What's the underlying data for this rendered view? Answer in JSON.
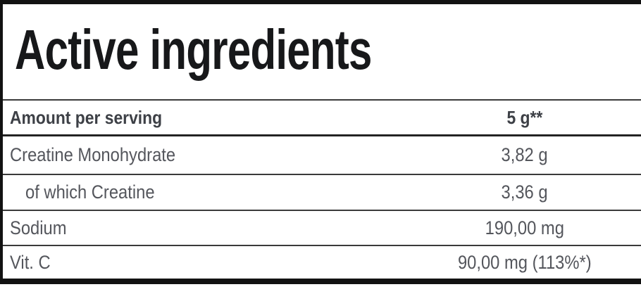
{
  "title": "Active ingredients",
  "table": {
    "header": {
      "label": "Amount per serving",
      "value": "5 g**"
    },
    "rows": [
      {
        "label": "Creatine Monohydrate",
        "value": "3,82 g"
      },
      {
        "label": "of which Creatine",
        "value": "3,36 g"
      },
      {
        "label": "Sodium",
        "value": "190,00 mg"
      },
      {
        "label": "Vit. C",
        "value": "90,00 mg (113%*)"
      }
    ]
  },
  "colors": {
    "border_black": "#121212",
    "divider_gray": "#3a3a3a",
    "header_divider": "#232323",
    "title_text": "#17181a",
    "header_text": "#3d4046",
    "row_text": "#54565c",
    "background": "#ffffff"
  }
}
